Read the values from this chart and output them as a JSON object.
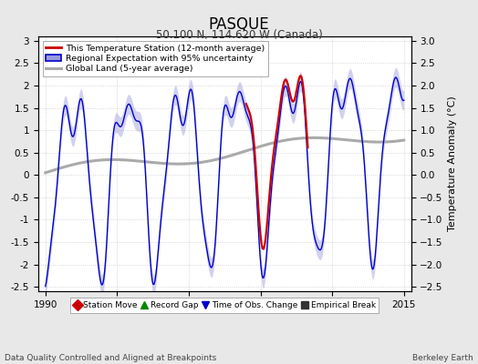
{
  "title": "PASQUE",
  "subtitle": "50.100 N, 114.620 W (Canada)",
  "ylabel": "Temperature Anomaly (°C)",
  "xlabel_left": "Data Quality Controlled and Aligned at Breakpoints",
  "xlabel_right": "Berkeley Earth",
  "xlim": [
    1989.5,
    2015.5
  ],
  "ylim": [
    -2.6,
    3.1
  ],
  "yticks": [
    -2.5,
    -2,
    -1.5,
    -1,
    -0.5,
    0,
    0.5,
    1,
    1.5,
    2,
    2.5,
    3
  ],
  "xticks": [
    1990,
    1995,
    2000,
    2005,
    2010,
    2015
  ],
  "bg_color": "#e8e8e8",
  "plot_bg_color": "#ffffff",
  "red_line_color": "#cc0000",
  "blue_line_color": "#0000cc",
  "blue_shade_color": "#9999dd",
  "gray_line_color": "#aaaaaa",
  "legend_items": [
    {
      "label": "This Temperature Station (12-month average)",
      "color": "#cc0000",
      "lw": 2
    },
    {
      "label": "Regional Expectation with 95% uncertainty",
      "color": "#0000cc",
      "lw": 2
    },
    {
      "label": "Global Land (5-year average)",
      "color": "#aaaaaa",
      "lw": 3
    }
  ],
  "marker_legend": [
    {
      "label": "Station Move",
      "color": "#cc0000",
      "marker": "D"
    },
    {
      "label": "Record Gap",
      "color": "#008800",
      "marker": "^"
    },
    {
      "label": "Time of Obs. Change",
      "color": "#0000cc",
      "marker": "v"
    },
    {
      "label": "Empirical Break",
      "color": "#333333",
      "marker": "s"
    }
  ]
}
